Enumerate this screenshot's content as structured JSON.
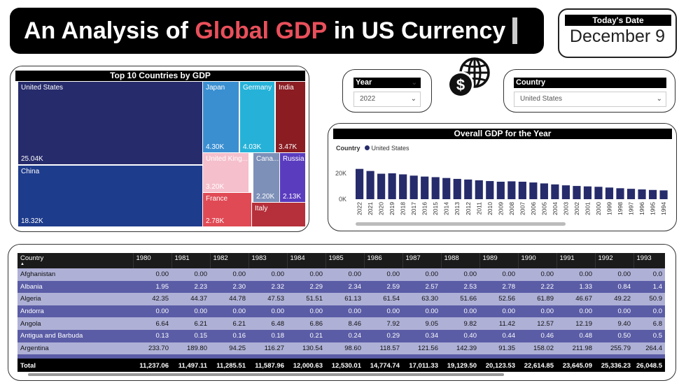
{
  "title": {
    "part1": "An Analysis of ",
    "highlight": "Global GDP",
    "part2": " in US Currency"
  },
  "date": {
    "label": "Today's Date",
    "value": "December 9"
  },
  "treemap": {
    "title": "Top 10 Countries by GDP",
    "tiles": [
      {
        "name": "United States",
        "value": "25.04K",
        "color": "#262b6b"
      },
      {
        "name": "China",
        "value": "18.32K",
        "color": "#1e3c8c"
      },
      {
        "name": "Japan",
        "value": "4.30K",
        "color": "#3a8fd1"
      },
      {
        "name": "Germany",
        "value": "4.03K",
        "color": "#26b2d8"
      },
      {
        "name": "India",
        "value": "3.47K",
        "color": "#8a1c22"
      },
      {
        "name": "United King...",
        "value": "3.20K",
        "color": "#f5bfcc"
      },
      {
        "name": "Cana...",
        "value": "2.20K",
        "color": "#7d90b8"
      },
      {
        "name": "Russia",
        "value": "2.13K",
        "color": "#5a3cbf"
      },
      {
        "name": "France",
        "value": "2.78K",
        "color": "#e04a55"
      },
      {
        "name": "Italy",
        "value": "",
        "color": "#b5303a"
      }
    ]
  },
  "slicers": {
    "year": {
      "label": "Year",
      "value": "2022"
    },
    "country": {
      "label": "Country",
      "value": "United States"
    }
  },
  "chart_data": {
    "type": "bar",
    "title": "Overall GDP for the Year",
    "legend_title": "Country",
    "series_name": "United States",
    "color": "#262b6b",
    "yticks": [
      "20K",
      "0K"
    ],
    "categories": [
      "2022",
      "2021",
      "2020",
      "2019",
      "2018",
      "2017",
      "2016",
      "2015",
      "2014",
      "2013",
      "2012",
      "2011",
      "2010",
      "2009",
      "2008",
      "2007",
      "2006",
      "2005",
      "2004",
      "2003",
      "2002",
      "2001",
      "2000",
      "1999",
      "1998",
      "1997",
      "1996",
      "1995",
      "1994"
    ],
    "values": [
      25040,
      23320,
      21060,
      21380,
      20530,
      19480,
      18700,
      18210,
      17520,
      16780,
      16250,
      15600,
      14990,
      14450,
      14770,
      14450,
      13820,
      13040,
      12220,
      11460,
      10930,
      10580,
      10250,
      9630,
      9060,
      8580,
      8070,
      7640,
      7290
    ],
    "ylim": [
      0,
      26000
    ]
  },
  "table": {
    "headers": [
      "Country",
      "1980",
      "1981",
      "1982",
      "1983",
      "1984",
      "1985",
      "1986",
      "1987",
      "1988",
      "1989",
      "1990",
      "1991",
      "1992",
      "1993"
    ],
    "rows": [
      [
        "Afghanistan",
        "0.00",
        "0.00",
        "0.00",
        "0.00",
        "0.00",
        "0.00",
        "0.00",
        "0.00",
        "0.00",
        "0.00",
        "0.00",
        "0.00",
        "0.00",
        "0.0"
      ],
      [
        "Albania",
        "1.95",
        "2.23",
        "2.30",
        "2.32",
        "2.29",
        "2.34",
        "2.59",
        "2.57",
        "2.53",
        "2.78",
        "2.22",
        "1.33",
        "0.84",
        "1.4"
      ],
      [
        "Algeria",
        "42.35",
        "44.37",
        "44.78",
        "47.53",
        "51.51",
        "61.13",
        "61.54",
        "63.30",
        "51.66",
        "52.56",
        "61.89",
        "46.67",
        "49.22",
        "50.9"
      ],
      [
        "Andorra",
        "0.00",
        "0.00",
        "0.00",
        "0.00",
        "0.00",
        "0.00",
        "0.00",
        "0.00",
        "0.00",
        "0.00",
        "0.00",
        "0.00",
        "0.00",
        "0.0"
      ],
      [
        "Angola",
        "6.64",
        "6.21",
        "6.21",
        "6.48",
        "6.86",
        "8.46",
        "7.92",
        "9.05",
        "9.82",
        "11.42",
        "12.57",
        "12.19",
        "9.40",
        "6.8"
      ],
      [
        "Antigua and Barbuda",
        "0.13",
        "0.15",
        "0.16",
        "0.18",
        "0.21",
        "0.24",
        "0.29",
        "0.34",
        "0.40",
        "0.44",
        "0.46",
        "0.48",
        "0.50",
        "0.5"
      ],
      [
        "Argentina",
        "233.70",
        "189.80",
        "94.25",
        "116.27",
        "130.54",
        "98.60",
        "118.57",
        "121.56",
        "142.39",
        "91.35",
        "158.02",
        "211.98",
        "255.79",
        "264.4"
      ]
    ],
    "total": [
      "Total",
      "11,237.06",
      "11,497.11",
      "11,285.51",
      "11,587.96",
      "12,000.63",
      "12,530.01",
      "14,774.74",
      "17,011.33",
      "19,129.50",
      "20,123.53",
      "22,614.85",
      "23,645.09",
      "25,336.23",
      "26,048.5"
    ]
  }
}
